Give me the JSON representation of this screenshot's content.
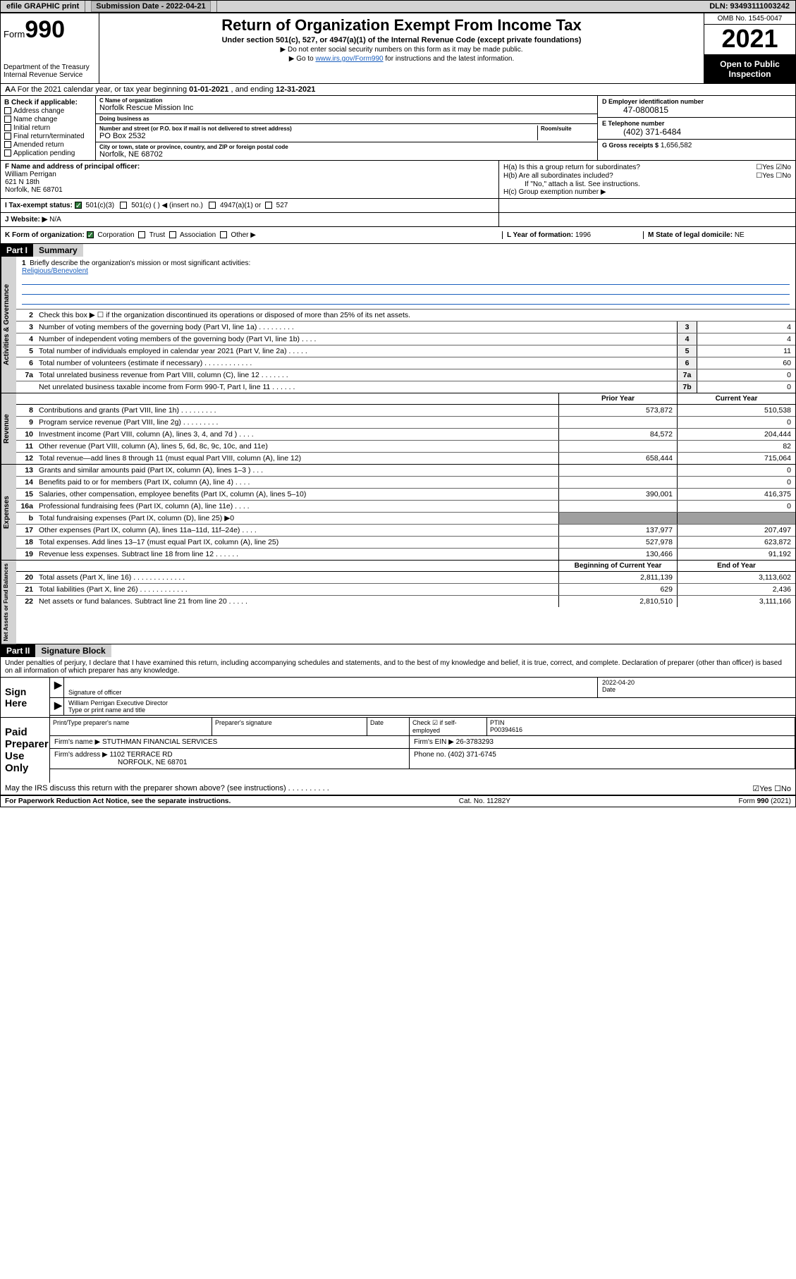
{
  "topbar": {
    "efile": "efile GRAPHIC print",
    "subdate_lbl": "Submission Date - 2022-04-21",
    "dln": "DLN: 93493111003242"
  },
  "header": {
    "form_word": "Form",
    "form_num": "990",
    "dept": "Department of the Treasury",
    "irs": "Internal Revenue Service",
    "title": "Return of Organization Exempt From Income Tax",
    "sub": "Under section 501(c), 527, or 4947(a)(1) of the Internal Revenue Code (except private foundations)",
    "note1": "▶ Do not enter social security numbers on this form as it may be made public.",
    "note2_pre": "▶ Go to ",
    "note2_link": "www.irs.gov/Form990",
    "note2_post": " for instructions and the latest information.",
    "omb": "OMB No. 1545-0047",
    "year": "2021",
    "inspect1": "Open to Public",
    "inspect2": "Inspection"
  },
  "rowA": {
    "text_pre": "A For the 2021 calendar year, or tax year beginning ",
    "begin": "01-01-2021",
    "mid": " , and ending ",
    "end": "12-31-2021"
  },
  "colB": {
    "hdr": "B Check if applicable:",
    "items": [
      "Address change",
      "Name change",
      "Initial return",
      "Final return/terminated",
      "Amended return",
      "Application pending"
    ]
  },
  "colC": {
    "name_lbl": "C Name of organization",
    "name": "Norfolk Rescue Mission Inc",
    "dba_lbl": "Doing business as",
    "dba": "",
    "addr_lbl": "Number and street (or P.O. box if mail is not delivered to street address)",
    "room_lbl": "Room/suite",
    "addr": "PO Box 2532",
    "city_lbl": "City or town, state or province, country, and ZIP or foreign postal code",
    "city": "Norfolk, NE  68702"
  },
  "colD": {
    "ein_lbl": "D Employer identification number",
    "ein": "47-0800815",
    "tel_lbl": "E Telephone number",
    "tel": "(402) 371-6484",
    "gross_lbl": "G Gross receipts $",
    "gross": "1,656,582"
  },
  "colF": {
    "lbl": "F Name and address of principal officer:",
    "name": "William Perrigan",
    "addr1": "621 N 18th",
    "addr2": "Norfolk, NE  68701"
  },
  "colH": {
    "ha": "H(a)  Is this a group return for subordinates?",
    "ha_ans": "☐Yes ☑No",
    "hb": "H(b)  Are all subordinates included?",
    "hb_ans": "☐Yes ☐No",
    "hb_note": "If \"No,\" attach a list. See instructions.",
    "hc": "H(c)  Group exemption number ▶"
  },
  "rowI": {
    "lbl": "I   Tax-exempt status:",
    "opt1": "501(c)(3)",
    "opt2": "501(c) (  ) ◀ (insert no.)",
    "opt3": "4947(a)(1) or",
    "opt4": "527"
  },
  "rowJ": {
    "lbl": "J   Website: ▶",
    "val": "N/A"
  },
  "rowK": {
    "lbl": "K Form of organization:",
    "opts": [
      "Corporation",
      "Trust",
      "Association",
      "Other ▶"
    ],
    "L_lbl": "L Year of formation:",
    "L_val": "1996",
    "M_lbl": "M State of legal domicile:",
    "M_val": "NE"
  },
  "part1": {
    "hdr": "Part I",
    "title": "Summary",
    "q1": "Briefly describe the organization's mission or most significant activities:",
    "q1_ans": "Religious/Benevolent",
    "q2": "Check this box ▶ ☐  if the organization discontinued its operations or disposed of more than 25% of its net assets."
  },
  "vtabs": {
    "gov": "Activities & Governance",
    "rev": "Revenue",
    "exp": "Expenses",
    "net": "Net Assets or Fund Balances"
  },
  "gov_lines": [
    {
      "n": "3",
      "t": "Number of voting members of the governing body (Part VI, line 1a)  .   .   .   .   .   .   .   .   .",
      "b": "3",
      "v": "4"
    },
    {
      "n": "4",
      "t": "Number of independent voting members of the governing body (Part VI, line 1b)   .   .   .   .",
      "b": "4",
      "v": "4"
    },
    {
      "n": "5",
      "t": "Total number of individuals employed in calendar year 2021 (Part V, line 2a)   .   .   .   .   .",
      "b": "5",
      "v": "11"
    },
    {
      "n": "6",
      "t": "Total number of volunteers (estimate if necessary)   .   .   .   .   .   .   .   .   .   .   .   .",
      "b": "6",
      "v": "60"
    },
    {
      "n": "7a",
      "t": "Total unrelated business revenue from Part VIII, column (C), line 12   .   .   .   .   .   .   .",
      "b": "7a",
      "v": "0"
    },
    {
      "n": "",
      "t": "Net unrelated business taxable income from Form 990-T, Part I, line 11   .   .   .   .   .   .",
      "b": "7b",
      "v": "0"
    }
  ],
  "col_hdrs": {
    "prior": "Prior Year",
    "current": "Current Year",
    "boy": "Beginning of Current Year",
    "eoy": "End of Year"
  },
  "rev_lines": [
    {
      "n": "8",
      "t": "Contributions and grants (Part VIII, line 1h)   .   .   .   .   .   .   .   .   .",
      "p": "573,872",
      "c": "510,538"
    },
    {
      "n": "9",
      "t": "Program service revenue (Part VIII, line 2g)   .   .   .   .   .   .   .   .   .",
      "p": "",
      "c": "0"
    },
    {
      "n": "10",
      "t": "Investment income (Part VIII, column (A), lines 3, 4, and 7d )   .   .   .   .",
      "p": "84,572",
      "c": "204,444"
    },
    {
      "n": "11",
      "t": "Other revenue (Part VIII, column (A), lines 5, 6d, 8c, 9c, 10c, and 11e)",
      "p": "",
      "c": "82"
    },
    {
      "n": "12",
      "t": "Total revenue—add lines 8 through 11 (must equal Part VIII, column (A), line 12)",
      "p": "658,444",
      "c": "715,064"
    }
  ],
  "exp_lines": [
    {
      "n": "13",
      "t": "Grants and similar amounts paid (Part IX, column (A), lines 1–3 )   .   .   .",
      "p": "",
      "c": "0"
    },
    {
      "n": "14",
      "t": "Benefits paid to or for members (Part IX, column (A), line 4)   .   .   .   .",
      "p": "",
      "c": "0"
    },
    {
      "n": "15",
      "t": "Salaries, other compensation, employee benefits (Part IX, column (A), lines 5–10)",
      "p": "390,001",
      "c": "416,375"
    },
    {
      "n": "16a",
      "t": "Professional fundraising fees (Part IX, column (A), line 11e)   .   .   .   .",
      "p": "",
      "c": "0"
    },
    {
      "n": "b",
      "t": "Total fundraising expenses (Part IX, column (D), line 25) ▶0",
      "p": "shade",
      "c": "shade"
    },
    {
      "n": "17",
      "t": "Other expenses (Part IX, column (A), lines 11a–11d, 11f–24e)   .   .   .   .",
      "p": "137,977",
      "c": "207,497"
    },
    {
      "n": "18",
      "t": "Total expenses. Add lines 13–17 (must equal Part IX, column (A), line 25)",
      "p": "527,978",
      "c": "623,872"
    },
    {
      "n": "19",
      "t": "Revenue less expenses. Subtract line 18 from line 12   .   .   .   .   .   .",
      "p": "130,466",
      "c": "91,192"
    }
  ],
  "net_lines": [
    {
      "n": "20",
      "t": "Total assets (Part X, line 16)   .   .   .   .   .   .   .   .   .   .   .   .   .",
      "p": "2,811,139",
      "c": "3,113,602"
    },
    {
      "n": "21",
      "t": "Total liabilities (Part X, line 26)   .   .   .   .   .   .   .   .   .   .   .   .",
      "p": "629",
      "c": "2,436"
    },
    {
      "n": "22",
      "t": "Net assets or fund balances. Subtract line 21 from line 20   .   .   .   .   .",
      "p": "2,810,510",
      "c": "3,111,166"
    }
  ],
  "part2": {
    "hdr": "Part II",
    "title": "Signature Block"
  },
  "sig": {
    "decl": "Under penalties of perjury, I declare that I have examined this return, including accompanying schedules and statements, and to the best of my knowledge and belief, it is true, correct, and complete. Declaration of preparer (other than officer) is based on all information of which preparer has any knowledge.",
    "sign_here": "Sign Here",
    "sig_officer": "Signature of officer",
    "date_lbl": "Date",
    "date": "2022-04-20",
    "name": "William Perrigan  Executive Director",
    "name_lbl": "Type or print name and title"
  },
  "prep": {
    "title": "Paid Preparer Use Only",
    "h1": "Print/Type preparer's name",
    "h2": "Preparer's signature",
    "h3": "Date",
    "h4_pre": "Check ☑ if self-employed",
    "h5": "PTIN",
    "ptin": "P00394616",
    "firm_lbl": "Firm's name    ▶",
    "firm": "STUTHMAN FINANCIAL SERVICES",
    "ein_lbl": "Firm's EIN ▶",
    "ein": "26-3783293",
    "addr_lbl": "Firm's address ▶",
    "addr1": "1102 TERRACE RD",
    "addr2": "NORFOLK, NE  68701",
    "phone_lbl": "Phone no.",
    "phone": "(402) 371-6745",
    "discuss": "May the IRS discuss this return with the preparer shown above? (see instructions)   .   .   .   .   .   .   .   .   .   .",
    "discuss_ans": "☑Yes  ☐No"
  },
  "footer": {
    "left": "For Paperwork Reduction Act Notice, see the separate instructions.",
    "mid": "Cat. No. 11282Y",
    "right": "Form 990 (2021)"
  },
  "colors": {
    "link": "#1b5fbd",
    "shade": "#9f9f9f",
    "graybar": "#d3d3d3",
    "check_green": "#2d7a3a"
  }
}
